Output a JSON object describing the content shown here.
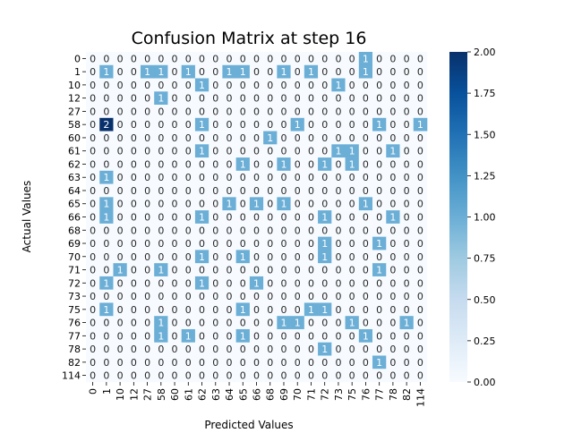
{
  "chart_data": {
    "type": "heatmap",
    "title": "Confusion Matrix at step 16",
    "xlabel": "Predicted Values",
    "ylabel": "Actual Values",
    "row_labels": [
      "0",
      "1",
      "10",
      "12",
      "27",
      "58",
      "60",
      "61",
      "62",
      "63",
      "64",
      "65",
      "66",
      "68",
      "69",
      "70",
      "71",
      "72",
      "73",
      "75",
      "76",
      "77",
      "78",
      "82",
      "114"
    ],
    "col_labels": [
      "0",
      "1",
      "10",
      "12",
      "27",
      "58",
      "60",
      "61",
      "62",
      "63",
      "64",
      "65",
      "66",
      "68",
      "69",
      "70",
      "71",
      "72",
      "73",
      "75",
      "76",
      "77",
      "78",
      "82",
      "114"
    ],
    "values": [
      [
        0,
        0,
        0,
        0,
        0,
        0,
        0,
        0,
        0,
        0,
        0,
        0,
        0,
        0,
        0,
        0,
        0,
        0,
        0,
        0,
        1,
        0,
        0,
        0,
        0
      ],
      [
        0,
        1,
        0,
        0,
        1,
        1,
        0,
        1,
        0,
        0,
        1,
        1,
        0,
        0,
        1,
        0,
        1,
        0,
        0,
        0,
        1,
        0,
        0,
        0,
        0
      ],
      [
        0,
        0,
        0,
        0,
        0,
        0,
        0,
        0,
        1,
        0,
        0,
        0,
        0,
        0,
        0,
        0,
        0,
        0,
        1,
        0,
        0,
        0,
        0,
        0,
        0
      ],
      [
        0,
        0,
        0,
        0,
        0,
        1,
        0,
        0,
        0,
        0,
        0,
        0,
        0,
        0,
        0,
        0,
        0,
        0,
        0,
        0,
        0,
        0,
        0,
        0,
        0
      ],
      [
        0,
        0,
        0,
        0,
        0,
        0,
        0,
        0,
        0,
        0,
        0,
        0,
        0,
        0,
        0,
        0,
        0,
        0,
        0,
        0,
        0,
        0,
        0,
        0,
        0
      ],
      [
        0,
        2,
        0,
        0,
        0,
        0,
        0,
        0,
        1,
        0,
        0,
        0,
        0,
        0,
        0,
        1,
        0,
        0,
        0,
        0,
        0,
        1,
        0,
        0,
        1
      ],
      [
        0,
        0,
        0,
        0,
        0,
        0,
        0,
        0,
        0,
        0,
        0,
        0,
        0,
        1,
        0,
        0,
        0,
        0,
        0,
        0,
        0,
        0,
        0,
        0,
        0
      ],
      [
        0,
        0,
        0,
        0,
        0,
        0,
        0,
        0,
        1,
        0,
        0,
        0,
        0,
        0,
        0,
        0,
        0,
        0,
        1,
        1,
        0,
        0,
        1,
        0,
        0
      ],
      [
        0,
        0,
        0,
        0,
        0,
        0,
        0,
        0,
        0,
        0,
        0,
        1,
        0,
        0,
        1,
        0,
        0,
        1,
        0,
        1,
        0,
        0,
        0,
        0,
        0
      ],
      [
        0,
        1,
        0,
        0,
        0,
        0,
        0,
        0,
        0,
        0,
        0,
        0,
        0,
        0,
        0,
        0,
        0,
        0,
        0,
        0,
        0,
        0,
        0,
        0,
        0
      ],
      [
        0,
        0,
        0,
        0,
        0,
        0,
        0,
        0,
        0,
        0,
        0,
        0,
        0,
        0,
        0,
        0,
        0,
        0,
        0,
        0,
        0,
        0,
        0,
        0,
        0
      ],
      [
        0,
        1,
        0,
        0,
        0,
        0,
        0,
        0,
        0,
        0,
        1,
        0,
        1,
        0,
        1,
        0,
        0,
        0,
        0,
        0,
        1,
        0,
        0,
        0,
        0
      ],
      [
        0,
        1,
        0,
        0,
        0,
        0,
        0,
        0,
        1,
        0,
        0,
        0,
        0,
        0,
        0,
        0,
        0,
        1,
        0,
        0,
        0,
        0,
        1,
        0,
        0
      ],
      [
        0,
        0,
        0,
        0,
        0,
        0,
        0,
        0,
        0,
        0,
        0,
        0,
        0,
        0,
        0,
        0,
        0,
        0,
        0,
        0,
        0,
        0,
        0,
        0,
        0
      ],
      [
        0,
        0,
        0,
        0,
        0,
        0,
        0,
        0,
        0,
        0,
        0,
        0,
        0,
        0,
        0,
        0,
        0,
        1,
        0,
        0,
        0,
        1,
        0,
        0,
        0
      ],
      [
        0,
        0,
        0,
        0,
        0,
        0,
        0,
        0,
        1,
        0,
        0,
        1,
        0,
        0,
        0,
        0,
        0,
        1,
        0,
        0,
        0,
        0,
        0,
        0,
        0
      ],
      [
        0,
        0,
        1,
        0,
        0,
        1,
        0,
        0,
        0,
        0,
        0,
        0,
        0,
        0,
        0,
        0,
        0,
        0,
        0,
        0,
        0,
        1,
        0,
        0,
        0
      ],
      [
        0,
        1,
        0,
        0,
        0,
        0,
        0,
        0,
        1,
        0,
        0,
        0,
        1,
        0,
        0,
        0,
        0,
        0,
        0,
        0,
        0,
        0,
        0,
        0,
        0
      ],
      [
        0,
        0,
        0,
        0,
        0,
        0,
        0,
        0,
        0,
        0,
        0,
        0,
        0,
        0,
        0,
        0,
        0,
        0,
        0,
        0,
        0,
        0,
        0,
        0,
        0
      ],
      [
        0,
        1,
        0,
        0,
        0,
        0,
        0,
        0,
        0,
        0,
        0,
        1,
        0,
        0,
        0,
        0,
        1,
        1,
        0,
        0,
        0,
        0,
        0,
        0,
        0
      ],
      [
        0,
        0,
        0,
        0,
        0,
        1,
        0,
        0,
        0,
        0,
        0,
        0,
        0,
        0,
        1,
        1,
        0,
        0,
        0,
        1,
        0,
        0,
        0,
        1,
        0
      ],
      [
        0,
        0,
        0,
        0,
        0,
        1,
        0,
        1,
        0,
        0,
        0,
        1,
        0,
        0,
        0,
        0,
        0,
        0,
        0,
        0,
        1,
        0,
        0,
        0,
        0
      ],
      [
        0,
        0,
        0,
        0,
        0,
        0,
        0,
        0,
        0,
        0,
        0,
        0,
        0,
        0,
        0,
        0,
        0,
        1,
        0,
        0,
        0,
        0,
        0,
        0,
        0
      ],
      [
        0,
        0,
        0,
        0,
        0,
        0,
        0,
        0,
        0,
        0,
        0,
        0,
        0,
        0,
        0,
        0,
        0,
        0,
        0,
        0,
        0,
        1,
        0,
        0,
        0
      ],
      [
        0,
        0,
        0,
        0,
        0,
        0,
        0,
        0,
        0,
        0,
        0,
        0,
        0,
        0,
        0,
        0,
        0,
        0,
        0,
        0,
        0,
        0,
        0,
        0,
        0
      ]
    ],
    "colorbar": {
      "min": 0.0,
      "max": 2.0,
      "ticks": [
        "0.00",
        "0.25",
        "0.50",
        "0.75",
        "1.00",
        "1.25",
        "1.50",
        "1.75",
        "2.00"
      ],
      "colormap": "Blues",
      "low_color": "#f7fbff",
      "mid_color": "#6baed6",
      "high_color": "#08306b"
    },
    "grid": false,
    "legend": "colorbar-right"
  }
}
